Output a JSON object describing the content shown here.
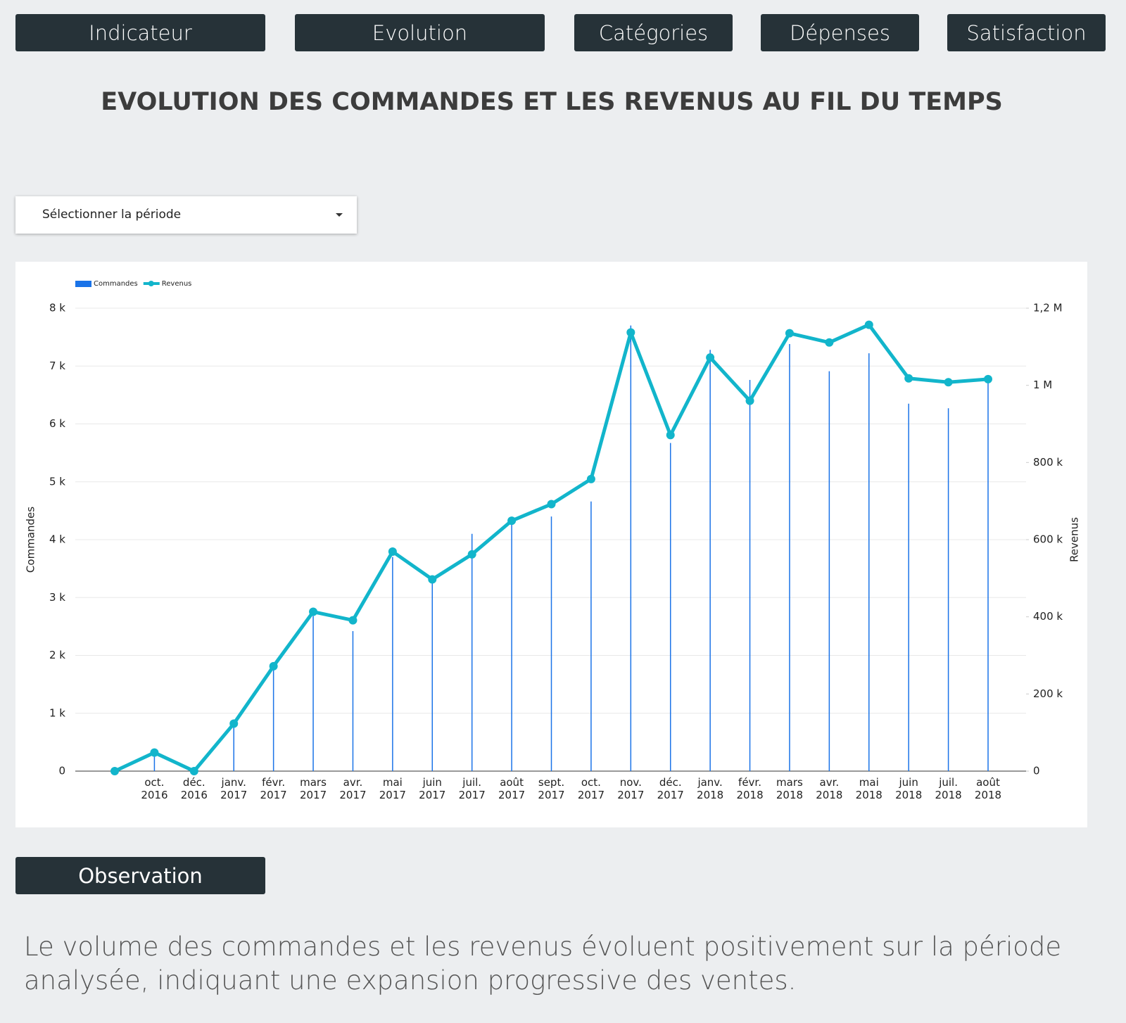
{
  "nav": [
    "Indicateur",
    "Evolution",
    "Catégories",
    "Dépenses",
    "Satisfaction"
  ],
  "header": {
    "title": "EVOLUTION DES COMMANDES ET LES REVENUS AU FIL DU TEMPS"
  },
  "filter": {
    "label": "Sélectionner la période"
  },
  "chart_data": {
    "type": "combo",
    "categories": [
      null,
      "oct. 2016",
      "déc. 2016",
      "janv. 2017",
      "févr. 2017",
      "mars 2017",
      "avr. 2017",
      "mai 2017",
      "juin 2017",
      "juil. 2017",
      "août 2017",
      "sept. 2017",
      "oct. 2017",
      "nov. 2017",
      "déc. 2017",
      "janv. 2018",
      "févr. 2018",
      "mars 2018",
      "avr. 2018",
      "mai 2018",
      "juin 2018",
      "juil. 2018",
      "août 2018"
    ],
    "series": [
      {
        "name": "Commandes",
        "type": "bar",
        "color": "#1a73e8",
        "values": [
          0,
          320,
          0,
          800,
          1780,
          2680,
          2420,
          3700,
          3250,
          4100,
          4330,
          4400,
          4660,
          7700,
          5670,
          7280,
          6760,
          7380,
          6910,
          7220,
          6350,
          6270,
          6800
        ]
      },
      {
        "name": "Revenus",
        "type": "line",
        "axis": "y2",
        "color": "#12b5cb",
        "values": [
          0,
          48000,
          0,
          123000,
          272000,
          413000,
          391000,
          569000,
          497000,
          562000,
          649000,
          692000,
          757000,
          1137000,
          871000,
          1072000,
          960000,
          1135000,
          1111000,
          1157000,
          1018000,
          1008000,
          1016000
        ]
      }
    ],
    "y_label": "Commandes",
    "y2_label": "Revenus",
    "ylim": [
      0,
      8000
    ],
    "yticks": [
      0,
      {
        "value": 1000,
        "label": "1 k"
      },
      {
        "value": 2000,
        "label": "2 k"
      },
      {
        "value": 3000,
        "label": "3 k"
      },
      {
        "value": 4000,
        "label": "4 k"
      },
      {
        "value": 5000,
        "label": "5 k"
      },
      {
        "value": 6000,
        "label": "6 k"
      },
      {
        "value": 7000,
        "label": "7 k"
      },
      {
        "value": 8000,
        "label": "8 k"
      }
    ],
    "y2lim": [
      0,
      1200000
    ],
    "y2ticks": [
      0,
      {
        "value": 200000,
        "label": "200 k"
      },
      {
        "value": 400000,
        "label": "400 k"
      },
      {
        "value": 600000,
        "label": "600 k"
      },
      {
        "value": 800000,
        "label": "800 k"
      },
      {
        "value": 1000000,
        "label": "1 M"
      },
      {
        "value": 1200000,
        "label": "1,2 M"
      }
    ],
    "grid": true,
    "legend": "top-left"
  },
  "observation": {
    "title": "Observation",
    "text": "Le volume des commandes et les revenus évoluent positivement sur la période analysée, indiquant une expansion progressive des ventes."
  }
}
